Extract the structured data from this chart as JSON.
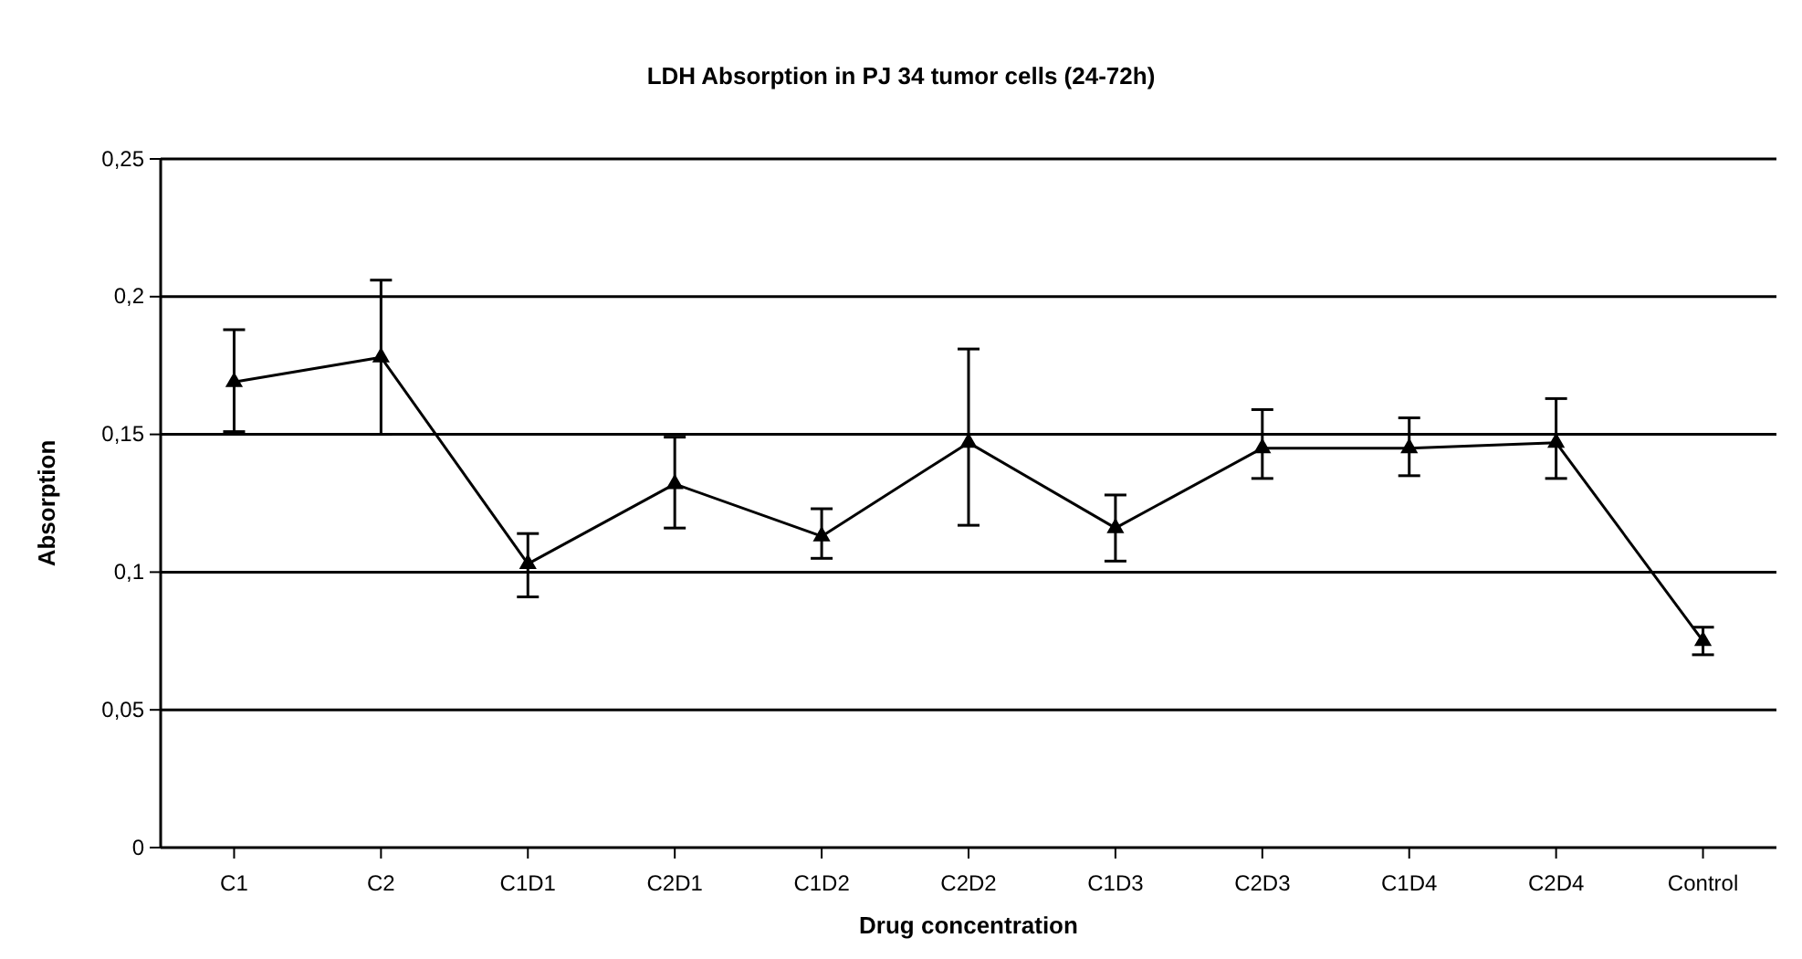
{
  "chart_data": {
    "type": "line",
    "title": "LDH Absorption in PJ 34 tumor cells (24-72h)",
    "xlabel": "Drug concentration",
    "ylabel": "Absorption",
    "categories": [
      "C1",
      "C2",
      "C1D1",
      "C2D1",
      "C1D2",
      "C2D2",
      "C1D3",
      "C2D3",
      "C1D4",
      "C2D4",
      "Control"
    ],
    "series": [
      {
        "color": "#000000",
        "values": [
          0.169,
          0.178,
          0.103,
          0.132,
          0.113,
          0.147,
          0.116,
          0.145,
          0.145,
          0.147,
          0.075
        ],
        "errors": [
          [
            0.151,
            0.188
          ],
          [
            0.15,
            0.206
          ],
          [
            0.091,
            0.114
          ],
          [
            0.116,
            0.149
          ],
          [
            0.105,
            0.123
          ],
          [
            0.117,
            0.181
          ],
          [
            0.104,
            0.128
          ],
          [
            0.134,
            0.159
          ],
          [
            0.135,
            0.156
          ],
          [
            0.134,
            0.163
          ],
          [
            0.07,
            0.08
          ]
        ]
      }
    ],
    "ylim": [
      0,
      0.25
    ],
    "yticks": [
      {
        "value": 0,
        "label": "0"
      },
      {
        "value": 0.05,
        "label": "0,05"
      },
      {
        "value": 0.1,
        "label": "0,1"
      },
      {
        "value": 0.15,
        "label": "0,15"
      },
      {
        "value": 0.2,
        "label": "0,2"
      },
      {
        "value": 0.25,
        "label": "0,25"
      }
    ],
    "grid": "y",
    "marker": "triangle",
    "line_style": "solid"
  }
}
